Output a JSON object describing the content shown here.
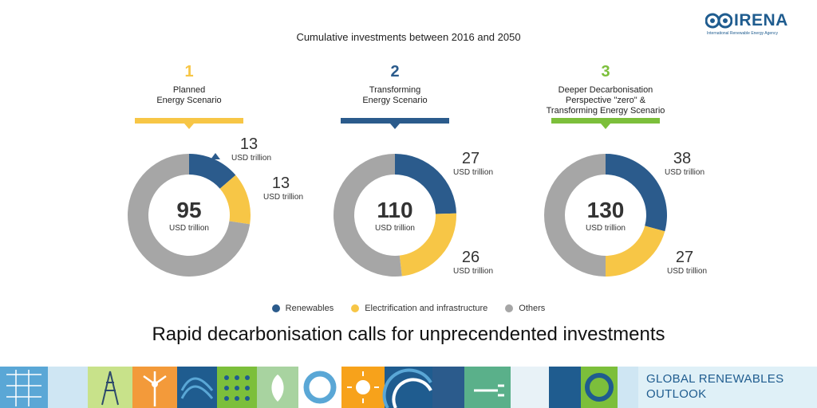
{
  "logo": {
    "name": "IRENA",
    "subtitle": "International Renewable Energy Agency"
  },
  "header": {
    "title": "Cumulative investments between 2016 and 2050"
  },
  "headline": "Rapid decarbonisation calls for unprecendented investments",
  "footer": {
    "line1": "GLOBAL RENEWABLES",
    "line2": "OUTLOOK"
  },
  "colors": {
    "renewables": "#2b5b8c",
    "electrification": "#f7c646",
    "others": "#a6a6a6",
    "scenario1": "#f7c646",
    "scenario2": "#2b5b8c",
    "scenario3": "#7cbf3b"
  },
  "legend": [
    {
      "label": "Renewables",
      "color": "#2b5b8c"
    },
    {
      "label": "Electrification and infrastructure",
      "color": "#f7c646"
    },
    {
      "label": "Others",
      "color": "#a6a6a6"
    }
  ],
  "chart_data": [
    {
      "type": "pie",
      "number": "1",
      "title_lines": [
        "Planned",
        "Energy Scenario"
      ],
      "total": 95,
      "total_unit": "USD trillion",
      "unit": "USD trillion",
      "slices": [
        {
          "name": "Renewables",
          "value": 13
        },
        {
          "name": "Electrification and infrastructure",
          "value": 13
        },
        {
          "name": "Others",
          "value": 69
        }
      ]
    },
    {
      "type": "pie",
      "number": "2",
      "title_lines": [
        "Transforming",
        "Energy Scenario"
      ],
      "total": 110,
      "total_unit": "USD trillion",
      "unit": "USD trillion",
      "slices": [
        {
          "name": "Renewables",
          "value": 27
        },
        {
          "name": "Electrification and infrastructure",
          "value": 26
        },
        {
          "name": "Others",
          "value": 57
        }
      ]
    },
    {
      "type": "pie",
      "number": "3",
      "title_lines": [
        "Deeper Decarbonisation",
        "Perspective \"zero\" &",
        "Transforming Energy Scenario"
      ],
      "total": 130,
      "total_unit": "USD trillion",
      "unit": "USD trillion",
      "slices": [
        {
          "name": "Renewables",
          "value": 38
        },
        {
          "name": "Electrification and infrastructure",
          "value": 27
        },
        {
          "name": "Others",
          "value": 65
        }
      ]
    }
  ]
}
